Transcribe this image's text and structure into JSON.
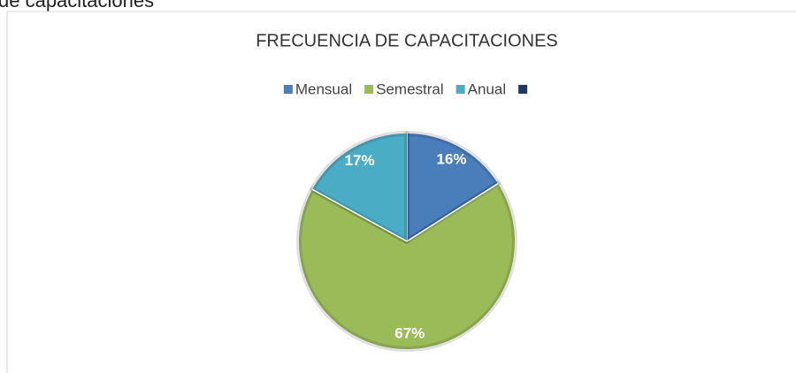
{
  "heading": "de capacitaciones",
  "chart_data": {
    "type": "pie",
    "title": "FRECUENCIA DE CAPACITACIONES",
    "categories": [
      "Mensual",
      "Semestral",
      "Anual",
      null
    ],
    "values": [
      16,
      67,
      17,
      0
    ],
    "value_labels": [
      "16%",
      "67%",
      "17%",
      null
    ],
    "colors": [
      "#4a7ebb",
      "#9bbb59",
      "#4bacc6",
      "#1f3864"
    ],
    "legend": "top"
  }
}
